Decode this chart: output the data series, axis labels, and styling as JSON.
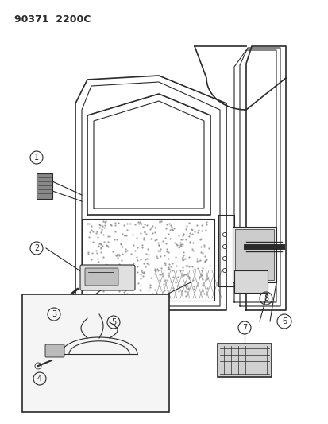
{
  "title": "90371  2200C",
  "bg_color": "#ffffff",
  "line_color": "#2a2a2a",
  "label_color": "#2a2a2a",
  "fig_width": 4.14,
  "fig_height": 5.33,
  "dpi": 100
}
